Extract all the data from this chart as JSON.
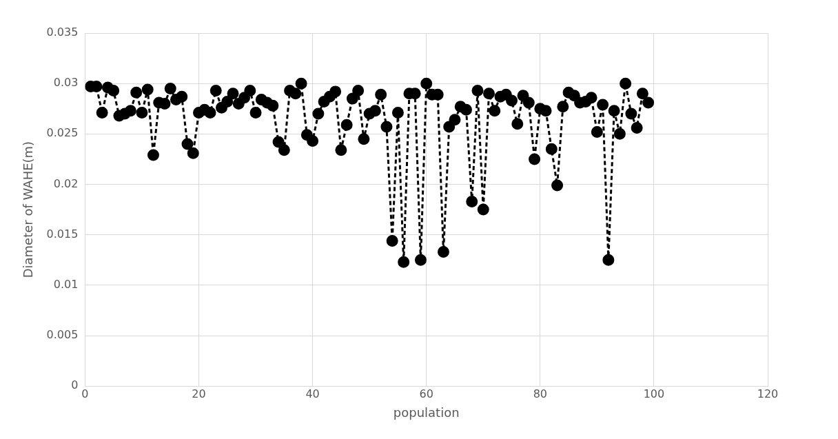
{
  "chart_data": {
    "type": "line",
    "xlabel": "population",
    "ylabel": "Diameter of WAHE(m)",
    "x": [
      1,
      2,
      3,
      4,
      5,
      6,
      7,
      8,
      9,
      10,
      11,
      12,
      13,
      14,
      15,
      16,
      17,
      18,
      19,
      20,
      21,
      22,
      23,
      24,
      25,
      26,
      27,
      28,
      29,
      30,
      31,
      32,
      33,
      34,
      35,
      36,
      37,
      38,
      39,
      40,
      41,
      42,
      43,
      44,
      45,
      46,
      47,
      48,
      49,
      50,
      51,
      52,
      53,
      54,
      55,
      56,
      57,
      58,
      59,
      60,
      61,
      62,
      63,
      64,
      65,
      66,
      67,
      68,
      69,
      70,
      71,
      72,
      73,
      74,
      75,
      76,
      77,
      78,
      79,
      80,
      81,
      82,
      83,
      84,
      85,
      86,
      87,
      88,
      89,
      90,
      91,
      92,
      93,
      94,
      95,
      96,
      97,
      98,
      99
    ],
    "series": [
      {
        "color": "#000000",
        "values": [
          0.0297,
          0.0297,
          0.0271,
          0.0296,
          0.0293,
          0.0268,
          0.027,
          0.0273,
          0.0291,
          0.0271,
          0.0294,
          0.0229,
          0.0281,
          0.028,
          0.0295,
          0.0284,
          0.0287,
          0.024,
          0.0231,
          0.0271,
          0.0274,
          0.0271,
          0.0293,
          0.0276,
          0.0282,
          0.029,
          0.028,
          0.0286,
          0.0293,
          0.0271,
          0.0284,
          0.0281,
          0.0278,
          0.0242,
          0.0234,
          0.0293,
          0.029,
          0.03,
          0.0249,
          0.0243,
          0.027,
          0.0282,
          0.0287,
          0.0292,
          0.0234,
          0.0259,
          0.0285,
          0.0293,
          0.0245,
          0.027,
          0.0273,
          0.0289,
          0.0257,
          0.0144,
          0.0271,
          0.0123,
          0.029,
          0.029,
          0.0125,
          0.03,
          0.0289,
          0.0289,
          0.0133,
          0.0257,
          0.0264,
          0.0277,
          0.0274,
          0.0183,
          0.0293,
          0.0175,
          0.029,
          0.0273,
          0.0287,
          0.0289,
          0.0283,
          0.026,
          0.0288,
          0.0281,
          0.0225,
          0.0275,
          0.0273,
          0.0235,
          0.0199,
          0.0277,
          0.0291,
          0.0288,
          0.0281,
          0.0282,
          0.0286,
          0.0252,
          0.0279,
          0.0125,
          0.0273,
          0.025,
          0.03,
          0.027,
          0.0256,
          0.029,
          0.0281
        ]
      }
    ],
    "xlim": [
      0,
      120
    ],
    "xticks": [
      0,
      20,
      40,
      60,
      80,
      100,
      120
    ],
    "ylim": [
      0,
      0.035
    ],
    "yticks": [
      0,
      0.005,
      0.01,
      0.015,
      0.02,
      0.025,
      0.03,
      0.035
    ],
    "grid": true,
    "legend": false,
    "marker": "circle",
    "line_style": "dashed"
  }
}
